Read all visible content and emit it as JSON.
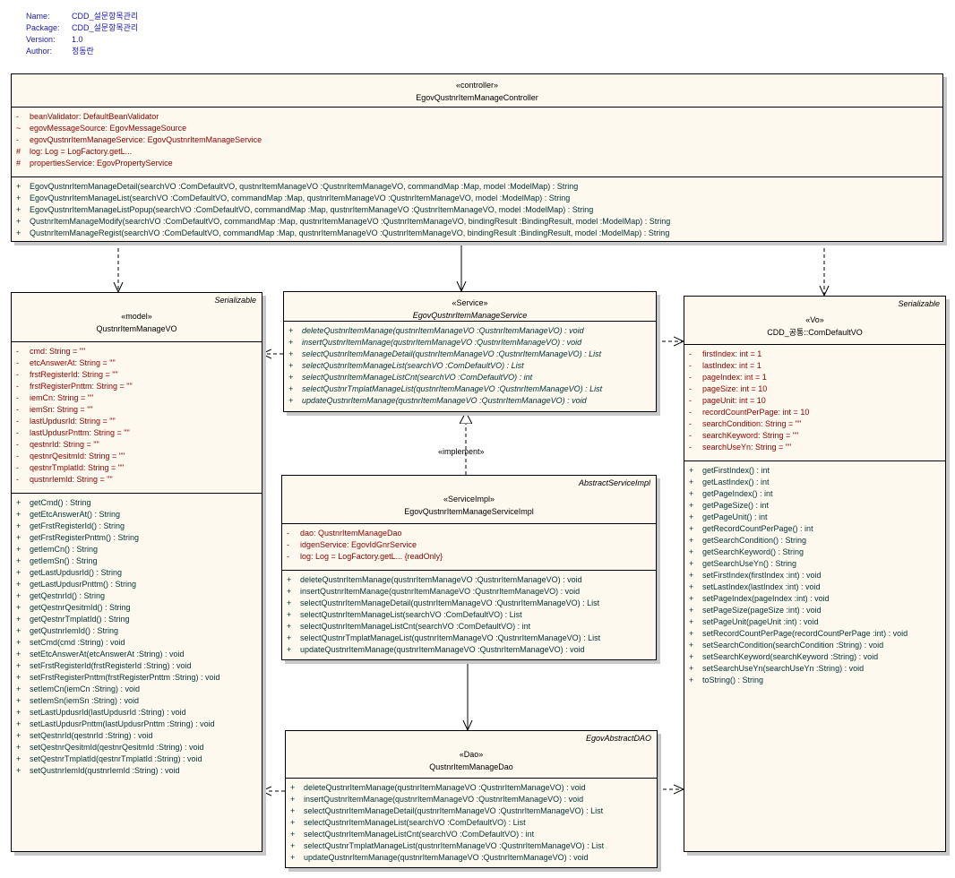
{
  "meta": [
    {
      "key": "Name:",
      "value": "CDD_설문항목관리"
    },
    {
      "key": "Package:",
      "value": "CDD_설문항목관리"
    },
    {
      "key": "Version:",
      "value": "1.0"
    },
    {
      "key": "Author:",
      "value": "정동란"
    }
  ],
  "implement_label": "«implement»",
  "classes": [
    {
      "id": "controller",
      "stereotype": "«controller»",
      "name": "EgovQustnrItemManageController",
      "superclass": "",
      "italic": false,
      "attributes": [
        {
          "vis": "-",
          "text": "beanValidator:  DefaultBeanValidator"
        },
        {
          "vis": "~",
          "text": "egovMessageSource:  EgovMessageSource"
        },
        {
          "vis": "-",
          "text": "egovQustnrItemManageService:  EgovQustnrItemManageService"
        },
        {
          "vis": "#",
          "text": "log:  Log = LogFactory.getL..."
        },
        {
          "vis": "#",
          "text": "propertiesService:  EgovPropertyService"
        }
      ],
      "operations": [
        {
          "vis": "+",
          "text": "EgovQustnrItemManageDetail(searchVO :ComDefaultVO, qustnrItemManageVO :QustnrItemManageVO, commandMap :Map, model :ModelMap) : String"
        },
        {
          "vis": "+",
          "text": "EgovQustnrItemManageList(searchVO :ComDefaultVO, commandMap :Map, qustnrItemManageVO :QustnrItemManageVO, model :ModelMap) : String"
        },
        {
          "vis": "+",
          "text": "EgovQustnrItemManageListPopup(searchVO :ComDefaultVO, commandMap :Map, qustnrItemManageVO :QustnrItemManageVO, model :ModelMap) : String"
        },
        {
          "vis": "+",
          "text": "QustnrItemManageModify(searchVO :ComDefaultVO, commandMap :Map, qustnrItemManageVO :QustnrItemManageVO, bindingResult :BindingResult, model :ModelMap) : String"
        },
        {
          "vis": "+",
          "text": "QustnrItemManageRegist(searchVO :ComDefaultVO, commandMap :Map, qustnrItemManageVO :QustnrItemManageVO, bindingResult :BindingResult, model :ModelMap) : String"
        }
      ]
    },
    {
      "id": "model",
      "stereotype": "«model»",
      "name": "QustnrItemManageVO",
      "superclass": "Serializable",
      "italic": false,
      "attributes": [
        {
          "vis": "-",
          "text": "cmd:  String = \"\""
        },
        {
          "vis": "-",
          "text": "etcAnswerAt:  String = \"\""
        },
        {
          "vis": "-",
          "text": "frstRegisterId:  String = \"\""
        },
        {
          "vis": "-",
          "text": "frstRegisterPnttm:  String = \"\""
        },
        {
          "vis": "-",
          "text": "iemCn:  String = \"\""
        },
        {
          "vis": "-",
          "text": "iemSn:  String = \"\""
        },
        {
          "vis": "-",
          "text": "lastUpdusrId:  String = \"\""
        },
        {
          "vis": "-",
          "text": "lastUpdusrPnttm:  String = \"\""
        },
        {
          "vis": "-",
          "text": "qestnrId:  String = \"\""
        },
        {
          "vis": "-",
          "text": "qestnrQesitmId:  String = \"\""
        },
        {
          "vis": "-",
          "text": "qestnrTmplatId:  String = \"\""
        },
        {
          "vis": "-",
          "text": "qustnrIemId:  String = \"\""
        }
      ],
      "operations": [
        {
          "vis": "+",
          "text": "getCmd() : String"
        },
        {
          "vis": "+",
          "text": "getEtcAnswerAt() : String"
        },
        {
          "vis": "+",
          "text": "getFrstRegisterId() : String"
        },
        {
          "vis": "+",
          "text": "getFrstRegisterPnttm() : String"
        },
        {
          "vis": "+",
          "text": "getIemCn() : String"
        },
        {
          "vis": "+",
          "text": "getIemSn() : String"
        },
        {
          "vis": "+",
          "text": "getLastUpdusrId() : String"
        },
        {
          "vis": "+",
          "text": "getLastUpdusrPnttm() : String"
        },
        {
          "vis": "+",
          "text": "getQestnrId() : String"
        },
        {
          "vis": "+",
          "text": "getQestnrQesitmId() : String"
        },
        {
          "vis": "+",
          "text": "getQestnrTmplatId() : String"
        },
        {
          "vis": "+",
          "text": "getQustnrIemId() : String"
        },
        {
          "vis": "+",
          "text": "setCmd(cmd :String) : void"
        },
        {
          "vis": "+",
          "text": "setEtcAnswerAt(etcAnswerAt :String) : void"
        },
        {
          "vis": "+",
          "text": "setFrstRegisterId(frstRegisterId :String) : void"
        },
        {
          "vis": "+",
          "text": "setFrstRegisterPnttm(frstRegisterPnttm :String) : void"
        },
        {
          "vis": "+",
          "text": "setIemCn(iemCn :String) : void"
        },
        {
          "vis": "+",
          "text": "setIemSn(iemSn :String) : void"
        },
        {
          "vis": "+",
          "text": "setLastUpdusrId(lastUpdusrId :String) : void"
        },
        {
          "vis": "+",
          "text": "setLastUpdusrPnttm(lastUpdusrPnttm :String) : void"
        },
        {
          "vis": "+",
          "text": "setQestnrId(qestnrId :String) : void"
        },
        {
          "vis": "+",
          "text": "setQestnrQesitmId(qestnrQesitmId :String) : void"
        },
        {
          "vis": "+",
          "text": "setQestnrTmplatId(qestnrTmplatId :String) : void"
        },
        {
          "vis": "+",
          "text": "setQustnrIemId(qustnrIemId :String) : void"
        }
      ]
    },
    {
      "id": "service",
      "stereotype": "«Service»",
      "name": "EgovQustnrItemManageService",
      "superclass": "",
      "italic": true,
      "attributes": [],
      "operations": [
        {
          "vis": "+",
          "text": "deleteQustnrItemManage(qustnrItemManageVO :QustnrItemManageVO) : void"
        },
        {
          "vis": "+",
          "text": "insertQustnrItemManage(qustnrItemManageVO :QustnrItemManageVO) : void"
        },
        {
          "vis": "+",
          "text": "selectQustnrItemManageDetail(qustnrItemManageVO :QustnrItemManageVO) : List"
        },
        {
          "vis": "+",
          "text": "selectQustnrItemManageList(searchVO :ComDefaultVO) : List"
        },
        {
          "vis": "+",
          "text": "selectQustnrItemManageListCnt(searchVO :ComDefaultVO) : int"
        },
        {
          "vis": "+",
          "text": "selectQustnrTmplatManageList(qustnrItemManageVO :QustnrItemManageVO) : List"
        },
        {
          "vis": "+",
          "text": "updateQustnrItemManage(qustnrItemManageVO :QustnrItemManageVO) : void"
        }
      ]
    },
    {
      "id": "comdefault",
      "stereotype": "«Vo»",
      "name": "CDD_공통::ComDefaultVO",
      "superclass": "Serializable",
      "italic": false,
      "attributes": [
        {
          "vis": "-",
          "text": "firstIndex:  int = 1"
        },
        {
          "vis": "-",
          "text": "lastIndex:  int = 1"
        },
        {
          "vis": "-",
          "text": "pageIndex:  int = 1"
        },
        {
          "vis": "-",
          "text": "pageSize:  int = 10"
        },
        {
          "vis": "-",
          "text": "pageUnit:  int = 10"
        },
        {
          "vis": "-",
          "text": "recordCountPerPage:  int = 10"
        },
        {
          "vis": "-",
          "text": "searchCondition:  String = \"\""
        },
        {
          "vis": "-",
          "text": "searchKeyword:  String = \"\""
        },
        {
          "vis": "-",
          "text": "searchUseYn:  String = \"\""
        }
      ],
      "operations": [
        {
          "vis": "+",
          "text": "getFirstIndex() : int"
        },
        {
          "vis": "+",
          "text": "getLastIndex() : int"
        },
        {
          "vis": "+",
          "text": "getPageIndex() : int"
        },
        {
          "vis": "+",
          "text": "getPageSize() : int"
        },
        {
          "vis": "+",
          "text": "getPageUnit() : int"
        },
        {
          "vis": "+",
          "text": "getRecordCountPerPage() : int"
        },
        {
          "vis": "+",
          "text": "getSearchCondition() : String"
        },
        {
          "vis": "+",
          "text": "getSearchKeyword() : String"
        },
        {
          "vis": "+",
          "text": "getSearchUseYn() : String"
        },
        {
          "vis": "+",
          "text": "setFirstIndex(firstIndex :int) : void"
        },
        {
          "vis": "+",
          "text": "setLastIndex(lastIndex :int) : void"
        },
        {
          "vis": "+",
          "text": "setPageIndex(pageIndex :int) : void"
        },
        {
          "vis": "+",
          "text": "setPageSize(pageSize :int) : void"
        },
        {
          "vis": "+",
          "text": "setPageUnit(pageUnit :int) : void"
        },
        {
          "vis": "+",
          "text": "setRecordCountPerPage(recordCountPerPage :int) : void"
        },
        {
          "vis": "+",
          "text": "setSearchCondition(searchCondition :String) : void"
        },
        {
          "vis": "+",
          "text": "setSearchKeyword(searchKeyword :String) : void"
        },
        {
          "vis": "+",
          "text": "setSearchUseYn(searchUseYn :String) : void"
        },
        {
          "vis": "+",
          "text": "toString() : String"
        }
      ]
    },
    {
      "id": "serviceimpl",
      "stereotype": "«ServiceImpl»",
      "name": "EgovQustnrItemManageServiceImpl",
      "superclass": "AbstractServiceImpl",
      "italic": false,
      "attributes": [
        {
          "vis": "-",
          "text": "dao:  QustnrItemManageDao"
        },
        {
          "vis": "-",
          "text": "idgenService:  EgovIdGnrService"
        },
        {
          "vis": "-",
          "text": "log:  Log = LogFactory.getL... {readOnly}"
        }
      ],
      "operations": [
        {
          "vis": "+",
          "text": "deleteQustnrItemManage(qustnrItemManageVO :QustnrItemManageVO) : void"
        },
        {
          "vis": "+",
          "text": "insertQustnrItemManage(qustnrItemManageVO :QustnrItemManageVO) : void"
        },
        {
          "vis": "+",
          "text": "selectQustnrItemManageDetail(qustnrItemManageVO :QustnrItemManageVO) : List"
        },
        {
          "vis": "+",
          "text": "selectQustnrItemManageList(searchVO :ComDefaultVO) : List"
        },
        {
          "vis": "+",
          "text": "selectQustnrItemManageListCnt(searchVO :ComDefaultVO) : int"
        },
        {
          "vis": "+",
          "text": "selectQustnrTmplatManageList(qustnrItemManageVO :QustnrItemManageVO) : List"
        },
        {
          "vis": "+",
          "text": "updateQustnrItemManage(qustnrItemManageVO :QustnrItemManageVO) : void"
        }
      ]
    },
    {
      "id": "dao",
      "stereotype": "«Dao»",
      "name": "QustnrItemManageDao",
      "superclass": "EgovAbstractDAO",
      "italic": false,
      "attributes": [],
      "operations": [
        {
          "vis": "+",
          "text": "deleteQustnrItemManage(qustnrItemManageVO :QustnrItemManageVO) : void"
        },
        {
          "vis": "+",
          "text": "insertQustnrItemManage(qustnrItemManageVO :QustnrItemManageVO) : void"
        },
        {
          "vis": "+",
          "text": "selectQustnrItemManageDetail(qustnrItemManageVO :QustnrItemManageVO) : List"
        },
        {
          "vis": "+",
          "text": "selectQustnrItemManageList(searchVO :ComDefaultVO) : List"
        },
        {
          "vis": "+",
          "text": "selectQustnrItemManageListCnt(searchVO :ComDefaultVO) : int"
        },
        {
          "vis": "+",
          "text": "selectQustnrTmplatManageList(qustnrItemManageVO :QustnrItemManageVO) : List"
        },
        {
          "vis": "+",
          "text": "updateQustnrItemManage(qustnrItemManageVO :QustnrItemManageVO) : void"
        }
      ]
    }
  ]
}
